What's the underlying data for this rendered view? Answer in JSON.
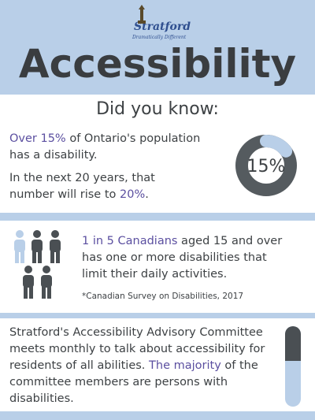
{
  "logo": {
    "name": "Stratford",
    "tagline": "Dramatically Different"
  },
  "title": "Accessibility",
  "section1": {
    "heading": "Did you know:",
    "line1": {
      "highlight": "Over 15%",
      "rest": " of Ontario's population has a disability."
    },
    "line2": {
      "rest": "In the next 20 years, that number will rise to ",
      "highlight": "20%",
      "end": "."
    },
    "donut": {
      "value": 15,
      "label": "15%"
    }
  },
  "section2": {
    "highlight": "1 in 5 Canadians",
    "rest": " aged 15 and over has one or more disabilities that limit their daily activities.",
    "source": "*Canadian Survey on Disabilities, 2017"
  },
  "section3": {
    "line1": "Stratford's Accessibility Advisory Committee meets monthly to talk about accessibility for residents of all abilities.",
    "highlight": "The majority",
    "rest": " of the committee members are persons with disabilities."
  }
}
